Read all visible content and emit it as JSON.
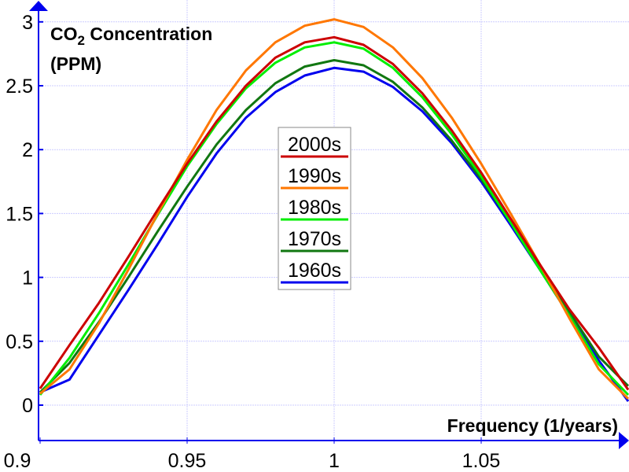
{
  "chart_data": {
    "type": "line",
    "title": "",
    "ylabel_line1": "CO",
    "ylabel_subscript": "2",
    "ylabel_rest": " Concentration",
    "ylabel_line2": "(PPM)",
    "xlabel": "Frequency (1/years)",
    "xlim": [
      0.9,
      1.1
    ],
    "ylim": [
      0,
      3
    ],
    "xticks": [
      0.9,
      0.95,
      1,
      1.05
    ],
    "xtick_labels": [
      "0.9",
      "0.95",
      "1",
      "1.05"
    ],
    "yticks": [
      0,
      0.5,
      1,
      1.5,
      2,
      2.5,
      3
    ],
    "ytick_labels": [
      "0",
      "0.5",
      "1",
      "1.5",
      "2",
      "2.5",
      "3"
    ],
    "grid": true,
    "legend_position": "center",
    "x": [
      0.9,
      0.91,
      0.92,
      0.93,
      0.94,
      0.95,
      0.96,
      0.97,
      0.98,
      0.99,
      1.0,
      1.01,
      1.02,
      1.03,
      1.04,
      1.05,
      1.06,
      1.07,
      1.08,
      1.09,
      1.1
    ],
    "series": [
      {
        "name": "2000s",
        "color": "#cc0000",
        "values": [
          0.13,
          0.47,
          0.8,
          1.16,
          1.53,
          1.89,
          2.22,
          2.5,
          2.72,
          2.84,
          2.88,
          2.82,
          2.67,
          2.44,
          2.15,
          1.82,
          1.46,
          1.1,
          0.75,
          0.45,
          0.12
        ]
      },
      {
        "name": "1990s",
        "color": "#ff7700",
        "values": [
          0.09,
          0.28,
          0.64,
          1.06,
          1.5,
          1.92,
          2.31,
          2.62,
          2.84,
          2.97,
          3.02,
          2.96,
          2.8,
          2.56,
          2.25,
          1.89,
          1.5,
          1.1,
          0.68,
          0.28,
          0.05
        ]
      },
      {
        "name": "1980s",
        "color": "#00ee00",
        "values": [
          0.08,
          0.37,
          0.72,
          1.1,
          1.49,
          1.87,
          2.2,
          2.48,
          2.68,
          2.8,
          2.84,
          2.79,
          2.64,
          2.41,
          2.12,
          1.79,
          1.43,
          1.06,
          0.7,
          0.32,
          0.08
        ]
      },
      {
        "name": "1970s",
        "color": "#117711",
        "values": [
          0.1,
          0.33,
          0.65,
          1.0,
          1.36,
          1.71,
          2.04,
          2.31,
          2.52,
          2.65,
          2.7,
          2.66,
          2.53,
          2.33,
          2.07,
          1.77,
          1.43,
          1.08,
          0.73,
          0.38,
          0.15
        ]
      },
      {
        "name": "1960s",
        "color": "#0000ee",
        "values": [
          0.1,
          0.2,
          0.55,
          0.9,
          1.26,
          1.63,
          1.97,
          2.25,
          2.45,
          2.58,
          2.64,
          2.61,
          2.49,
          2.3,
          2.05,
          1.75,
          1.41,
          1.06,
          0.7,
          0.35,
          0.03
        ]
      }
    ],
    "axis_color": "#0000ee",
    "grid_color": "#ccccff"
  }
}
